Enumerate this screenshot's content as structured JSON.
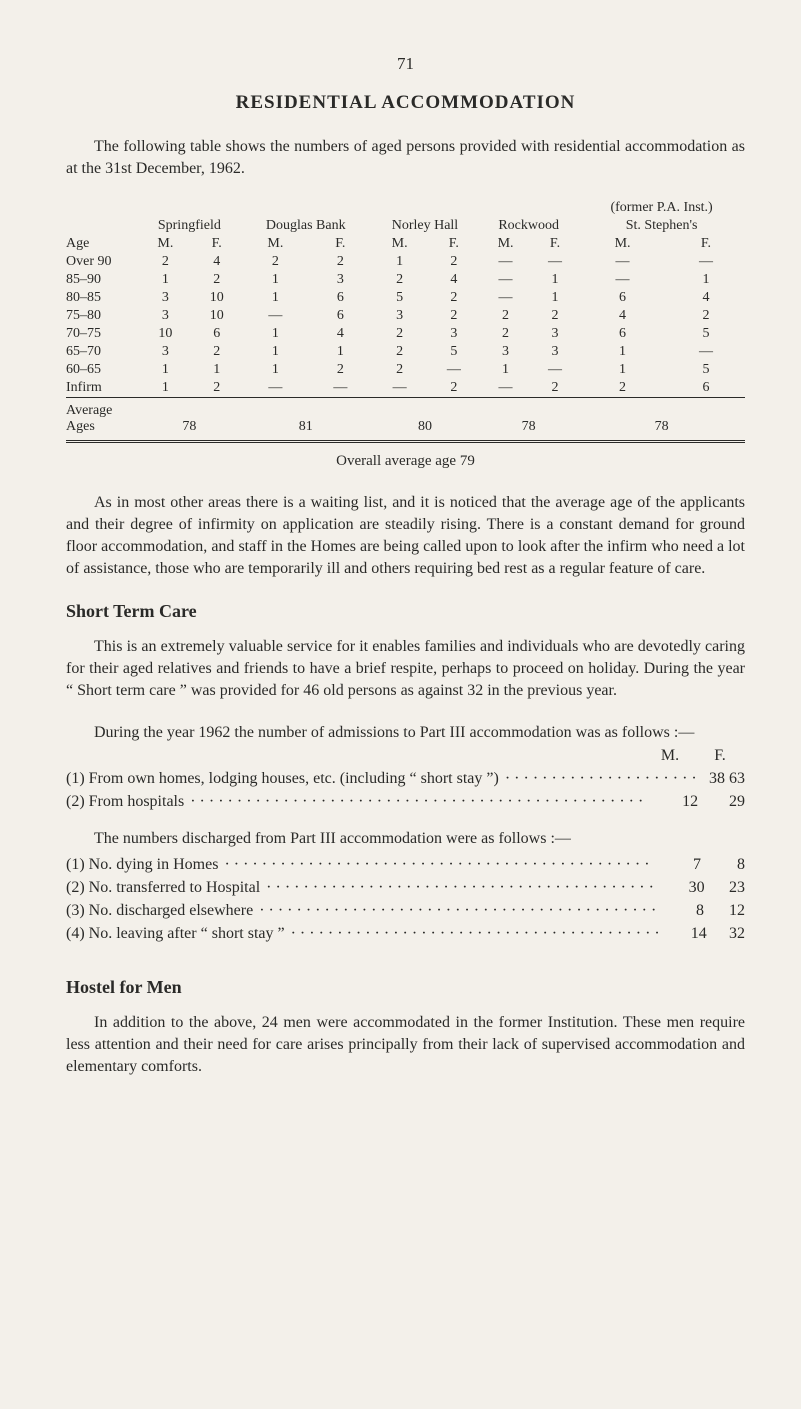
{
  "page_number": "71",
  "titles": {
    "main": "RESIDENTIAL ACCOMMODATION",
    "short_term": "Short Term Care",
    "hostel": "Hostel for Men"
  },
  "intro": "The following table shows the numbers of aged persons provided with residential accommodation as at the 31st December, 1962.",
  "table": {
    "pa_note": "(former P.A. Inst.)",
    "institutions": [
      "Springfield",
      "Douglas Bank",
      "Norley Hall",
      "Rockwood",
      "St. Stephen's"
    ],
    "age_label": "Age",
    "mf": [
      "M.",
      "F.",
      "M.",
      "F.",
      "M.",
      "F.",
      "M.",
      "F.",
      "M.",
      "F."
    ],
    "rows": [
      {
        "label": "Over 90",
        "cells": [
          "2",
          "4",
          "2",
          "2",
          "1",
          "2",
          "—",
          "—",
          "—",
          "—"
        ]
      },
      {
        "label": "85–90",
        "cells": [
          "1",
          "2",
          "1",
          "3",
          "2",
          "4",
          "—",
          "1",
          "—",
          "1"
        ]
      },
      {
        "label": "80–85",
        "cells": [
          "3",
          "10",
          "1",
          "6",
          "5",
          "2",
          "—",
          "1",
          "6",
          "4"
        ]
      },
      {
        "label": "75–80",
        "cells": [
          "3",
          "10",
          "—",
          "6",
          "3",
          "2",
          "2",
          "2",
          "4",
          "2"
        ]
      },
      {
        "label": "70–75",
        "cells": [
          "10",
          "6",
          "1",
          "4",
          "2",
          "3",
          "2",
          "3",
          "6",
          "5"
        ]
      },
      {
        "label": "65–70",
        "cells": [
          "3",
          "2",
          "1",
          "1",
          "2",
          "5",
          "3",
          "3",
          "1",
          "—"
        ]
      },
      {
        "label": "60–65",
        "cells": [
          "1",
          "1",
          "1",
          "2",
          "2",
          "—",
          "1",
          "—",
          "1",
          "5"
        ]
      },
      {
        "label": "Infirm",
        "cells": [
          "1",
          "2",
          "—",
          "—",
          "—",
          "2",
          "—",
          "2",
          "2",
          "6"
        ]
      }
    ],
    "average_label": "Average\nAges",
    "averages": [
      "78",
      "81",
      "80",
      "78",
      "78"
    ],
    "overall": "Overall average age 79"
  },
  "paras": {
    "p1": "As in most other areas there is a waiting list, and it is noticed that the average age of the applicants and their degree of infirmity on application are steadily rising.  There is a constant demand for ground floor accommodation, and staff in the Homes are being called upon to look after the infirm who need a lot of assistance, those who are temporarily ill and others requiring bed rest as a regular feature of care.",
    "stc1": "This is an extremely valuable service for it enables families and individuals who are devotedly caring for their aged relatives and friends to have a brief respite, perhaps to proceed on holiday.  During the year “ Short term care ” was provided for 46 old persons as against 32 in the previous year.",
    "during_intro": "During the year 1962 the number of admissions to Part III accommodation was as follows :—",
    "discharge_intro": "The numbers discharged from Part III accommodation were as follows :—",
    "hostel": "In addition to the above, 24 men were accommodated in the former Institution.  These men require less attention and their need for care arises principally from their lack of supervised accommodation and elementary comforts."
  },
  "mf_header": {
    "m": "M.",
    "f": "F."
  },
  "admissions": [
    {
      "label": "(1) From own homes, lodging houses, etc. (including “ short stay ”)",
      "m": "38",
      "f": "63"
    },
    {
      "label": "(2) From hospitals",
      "m": "12",
      "f": "29"
    }
  ],
  "discharges": [
    {
      "label": "(1) No. dying in Homes",
      "m": "7",
      "f": "8"
    },
    {
      "label": "(2) No. transferred to Hospital",
      "m": "30",
      "f": "23"
    },
    {
      "label": "(3) No. discharged elsewhere",
      "m": "8",
      "f": "12"
    },
    {
      "label": "(4) No. leaving after “ short stay ”",
      "m": "14",
      "f": "32"
    }
  ],
  "colors": {
    "bg": "#f3f0ea",
    "fg": "#2a2a28"
  }
}
